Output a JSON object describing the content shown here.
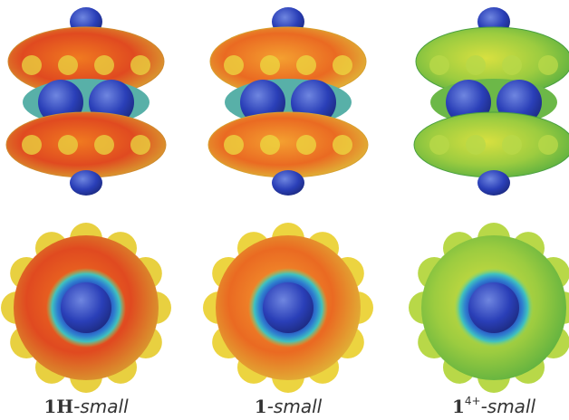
{
  "panels": [
    {
      "bold": "1H",
      "italic": "-small"
    },
    {
      "bold": "1",
      "italic": "-small"
    },
    {
      "bold": "1",
      "sup": "4+",
      "italic": "-small"
    }
  ]
}
